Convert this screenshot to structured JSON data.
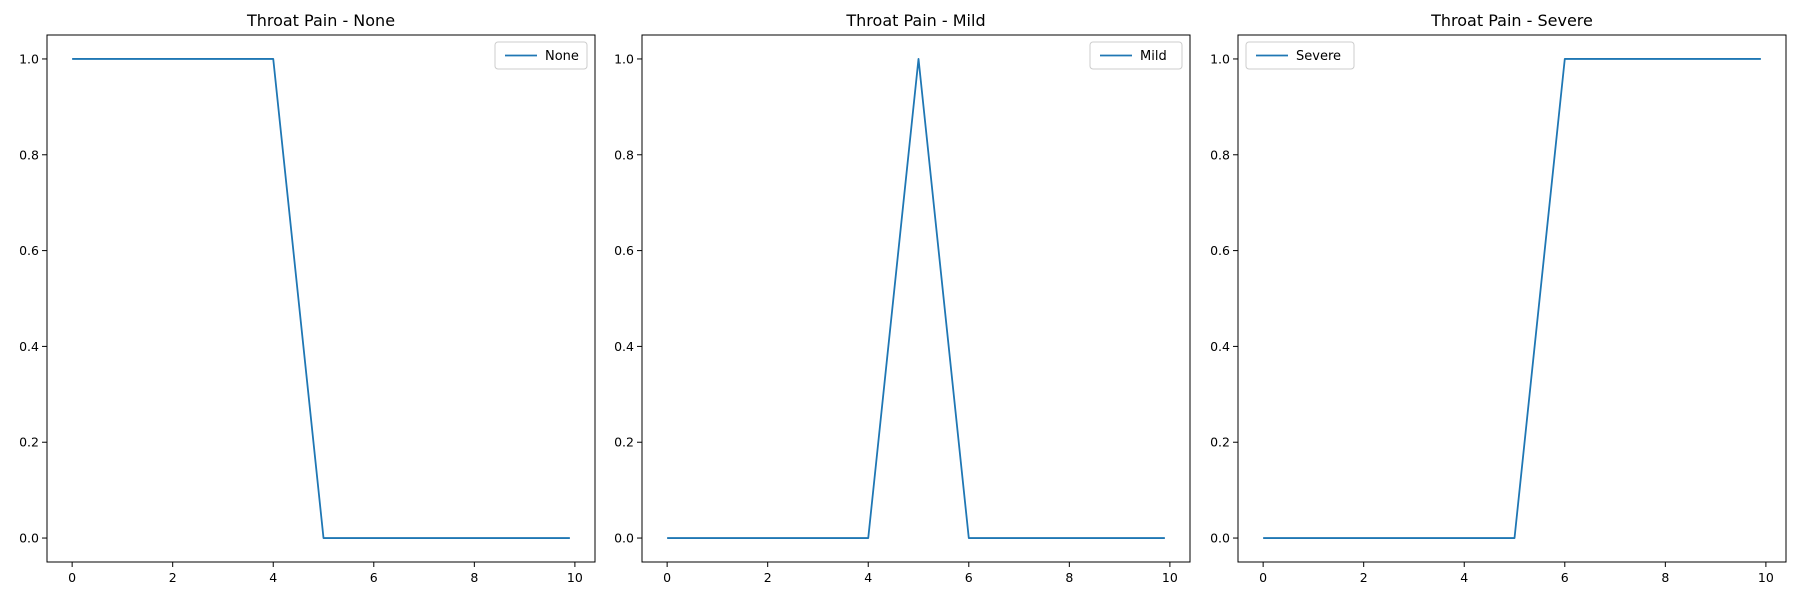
{
  "chart_data": [
    {
      "type": "line",
      "title": "Throat Pain - None",
      "xlabel": "",
      "ylabel": "",
      "xlim": [
        -0.5,
        10.4
      ],
      "ylim": [
        -0.05,
        1.05
      ],
      "xticks": [
        0,
        2,
        4,
        6,
        8,
        10
      ],
      "yticks": [
        0.0,
        0.2,
        0.4,
        0.6,
        0.8,
        1.0
      ],
      "ytick_labels": [
        "0.0",
        "0.2",
        "0.4",
        "0.6",
        "0.8",
        "1.0"
      ],
      "grid": false,
      "legend": "top-right",
      "series": [
        {
          "name": "None",
          "color": "#1f77b4",
          "x": [
            0,
            4,
            5,
            9.9
          ],
          "y": [
            1,
            1,
            0,
            0
          ]
        }
      ]
    },
    {
      "type": "line",
      "title": "Throat Pain - Mild",
      "xlabel": "",
      "ylabel": "",
      "xlim": [
        -0.5,
        10.4
      ],
      "ylim": [
        -0.05,
        1.05
      ],
      "xticks": [
        0,
        2,
        4,
        6,
        8,
        10
      ],
      "yticks": [
        0.0,
        0.2,
        0.4,
        0.6,
        0.8,
        1.0
      ],
      "ytick_labels": [
        "0.0",
        "0.2",
        "0.4",
        "0.6",
        "0.8",
        "1.0"
      ],
      "grid": false,
      "legend": "top-right",
      "series": [
        {
          "name": "Mild",
          "color": "#1f77b4",
          "x": [
            0,
            4,
            5,
            6,
            9.9
          ],
          "y": [
            0,
            0,
            1,
            0,
            0
          ]
        }
      ]
    },
    {
      "type": "line",
      "title": "Throat Pain - Severe",
      "xlabel": "",
      "ylabel": "",
      "xlim": [
        -0.5,
        10.4
      ],
      "ylim": [
        -0.05,
        1.05
      ],
      "xticks": [
        0,
        2,
        4,
        6,
        8,
        10
      ],
      "yticks": [
        0.0,
        0.2,
        0.4,
        0.6,
        0.8,
        1.0
      ],
      "ytick_labels": [
        "0.0",
        "0.2",
        "0.4",
        "0.6",
        "0.8",
        "1.0"
      ],
      "grid": false,
      "legend": "top-left",
      "series": [
        {
          "name": "Severe",
          "color": "#1f77b4",
          "x": [
            0,
            5,
            6,
            9.9
          ],
          "y": [
            0,
            0,
            1,
            1
          ]
        }
      ]
    }
  ]
}
